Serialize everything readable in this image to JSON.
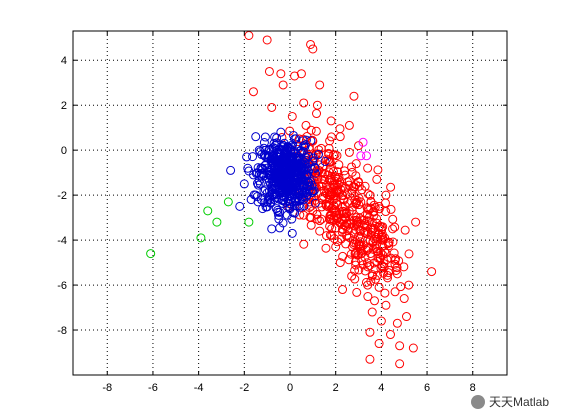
{
  "chart_data": {
    "type": "scatter",
    "title": "",
    "xlabel": "",
    "ylabel": "",
    "xlim": [
      -9.5,
      9.5
    ],
    "ylim": [
      -10,
      5.3
    ],
    "xticks": [
      -8,
      -6,
      -4,
      -2,
      0,
      2,
      4,
      6,
      8
    ],
    "yticks": [
      -8,
      -6,
      -4,
      -2,
      0,
      2,
      4
    ],
    "grid": true,
    "grid_style": "dotted",
    "marker": "open-circle",
    "series": [
      {
        "color": "#ff0000",
        "points": [
          [
            -1.8,
            5.1
          ],
          [
            -1.0,
            4.9
          ],
          [
            0.9,
            4.7
          ],
          [
            1.0,
            4.5
          ],
          [
            -0.9,
            3.5
          ],
          [
            -0.4,
            3.4
          ],
          [
            0.2,
            3.3
          ],
          [
            0.5,
            3.4
          ],
          [
            -1.6,
            2.6
          ],
          [
            -0.3,
            2.9
          ],
          [
            1.3,
            2.9
          ],
          [
            2.8,
            2.4
          ],
          [
            0.6,
            2.1
          ],
          [
            1.2,
            2.0
          ],
          [
            -0.8,
            1.9
          ],
          [
            0.1,
            1.5
          ],
          [
            0.7,
            1.1
          ],
          [
            1.8,
            1.3
          ],
          [
            2.6,
            1.1
          ],
          [
            0.4,
            0.5
          ],
          [
            1.0,
            0.4
          ],
          [
            2.2,
            0.6
          ],
          [
            3.0,
            0.2
          ],
          [
            2.6,
            -0.1
          ],
          [
            1.6,
            -0.4
          ],
          [
            2.9,
            -0.6
          ],
          [
            3.4,
            -0.8
          ],
          [
            1.2,
            -1.0
          ],
          [
            2.0,
            -1.2
          ],
          [
            3.0,
            -1.4
          ],
          [
            3.8,
            -1.3
          ],
          [
            1.4,
            -2.2
          ],
          [
            2.3,
            -2.0
          ],
          [
            3.1,
            -2.3
          ],
          [
            3.9,
            -2.5
          ],
          [
            4.2,
            -2.0
          ],
          [
            1.0,
            -2.7
          ],
          [
            2.0,
            -2.9
          ],
          [
            2.9,
            -3.0
          ],
          [
            3.6,
            -3.2
          ],
          [
            5.5,
            -3.2
          ],
          [
            1.3,
            -3.6
          ],
          [
            2.3,
            -3.5
          ],
          [
            3.3,
            -3.7
          ],
          [
            4.0,
            -3.8
          ],
          [
            2.0,
            -4.3
          ],
          [
            3.0,
            -4.2
          ],
          [
            3.8,
            -4.5
          ],
          [
            2.2,
            -5.0
          ],
          [
            3.2,
            -5.1
          ],
          [
            4.6,
            -4.9
          ],
          [
            2.7,
            -5.6
          ],
          [
            3.6,
            -5.6
          ],
          [
            4.7,
            -5.5
          ],
          [
            6.2,
            -5.4
          ],
          [
            2.3,
            -6.2
          ],
          [
            3.4,
            -6.0
          ],
          [
            3.9,
            -6.1
          ],
          [
            4.6,
            -6.3
          ],
          [
            5.2,
            -6.0
          ],
          [
            3.7,
            -6.7
          ],
          [
            5.0,
            -6.6
          ],
          [
            4.2,
            -6.9
          ],
          [
            3.6,
            -7.2
          ],
          [
            5.1,
            -7.4
          ],
          [
            4.0,
            -7.6
          ],
          [
            4.7,
            -7.7
          ],
          [
            3.5,
            -8.1
          ],
          [
            4.4,
            -8.2
          ],
          [
            3.9,
            -8.6
          ],
          [
            4.8,
            -8.7
          ],
          [
            5.4,
            -8.8
          ],
          [
            3.5,
            -9.3
          ],
          [
            4.8,
            -9.5
          ]
        ]
      },
      {
        "color": "#0000cc",
        "points": [
          [
            -2.6,
            -0.9
          ],
          [
            -1.9,
            -0.3
          ],
          [
            -1.5,
            0.6
          ],
          [
            -2.0,
            -1.5
          ],
          [
            -1.7,
            -2.2
          ],
          [
            -2.2,
            -2.5
          ],
          [
            -0.8,
            -3.5
          ],
          [
            0.1,
            -3.7
          ],
          [
            -1.1,
            -0.2
          ],
          [
            -0.7,
            0.3
          ],
          [
            -0.4,
            0.8
          ],
          [
            0.2,
            0.5
          ],
          [
            0.6,
            0.2
          ],
          [
            0.8,
            -0.6
          ],
          [
            0.9,
            -1.4
          ],
          [
            0.6,
            -2.2
          ],
          [
            0.2,
            -2.8
          ],
          [
            -0.5,
            -2.9
          ],
          [
            -1.2,
            -2.6
          ],
          [
            -1.5,
            -2.0
          ],
          [
            -1.6,
            -1.1
          ],
          [
            -1.2,
            -0.8
          ],
          [
            -0.9,
            -1.4
          ],
          [
            -0.6,
            -0.5
          ],
          [
            -0.3,
            -1.0
          ],
          [
            0.0,
            -0.4
          ],
          [
            0.3,
            -1.1
          ],
          [
            -0.2,
            -1.7
          ],
          [
            0.1,
            -2.1
          ],
          [
            -0.7,
            -2.2
          ],
          [
            -1.0,
            -1.9
          ],
          [
            -0.5,
            -1.2
          ],
          [
            0.4,
            -1.6
          ],
          [
            -1.3,
            -1.5
          ],
          [
            -0.9,
            -0.9
          ],
          [
            0.5,
            -0.8
          ],
          [
            -0.1,
            0.1
          ],
          [
            -0.6,
            -2.6
          ],
          [
            -1.4,
            -2.3
          ],
          [
            0.7,
            -1.9
          ]
        ]
      },
      {
        "color": "#00cc00",
        "points": [
          [
            -6.1,
            -4.6
          ],
          [
            -3.9,
            -3.9
          ],
          [
            -3.6,
            -2.7
          ],
          [
            -3.2,
            -3.2
          ],
          [
            -2.7,
            -2.3
          ],
          [
            -1.8,
            -3.2
          ]
        ]
      },
      {
        "color": "#ff00ff",
        "points": [
          [
            3.2,
            0.35
          ],
          [
            3.1,
            -0.25
          ],
          [
            3.35,
            -0.25
          ]
        ]
      }
    ]
  },
  "watermark": {
    "text": "天天Matlab",
    "icon": "wechat-icon"
  }
}
